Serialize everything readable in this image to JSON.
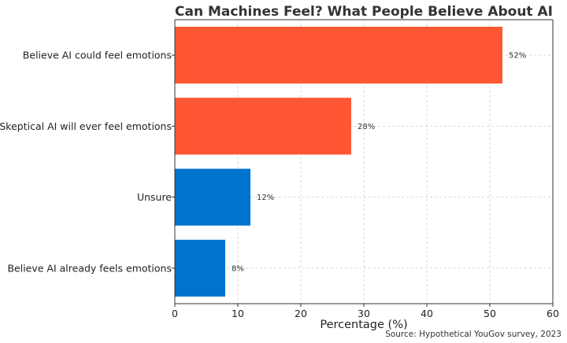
{
  "chart_data": {
    "type": "bar",
    "orientation": "horizontal",
    "title": "Can Machines Feel? What People Believe About AI",
    "xlabel": "Percentage (%)",
    "ylabel": "",
    "xlim": [
      0,
      60
    ],
    "xticks": [
      0,
      10,
      20,
      30,
      40,
      50,
      60
    ],
    "grid": true,
    "categories": [
      "Believe AI could feel emotions",
      "Skeptical AI will ever feel emotions",
      "Unsure",
      "Believe AI already feels emotions"
    ],
    "values": [
      52,
      28,
      12,
      8
    ],
    "data_labels": [
      "52%",
      "28%",
      "12%",
      "8%"
    ],
    "bar_colors": [
      "#ff5733",
      "#ff5733",
      "#0073cf",
      "#0073cf"
    ],
    "source": "Source: Hypothetical YouGov survey, 2023"
  }
}
